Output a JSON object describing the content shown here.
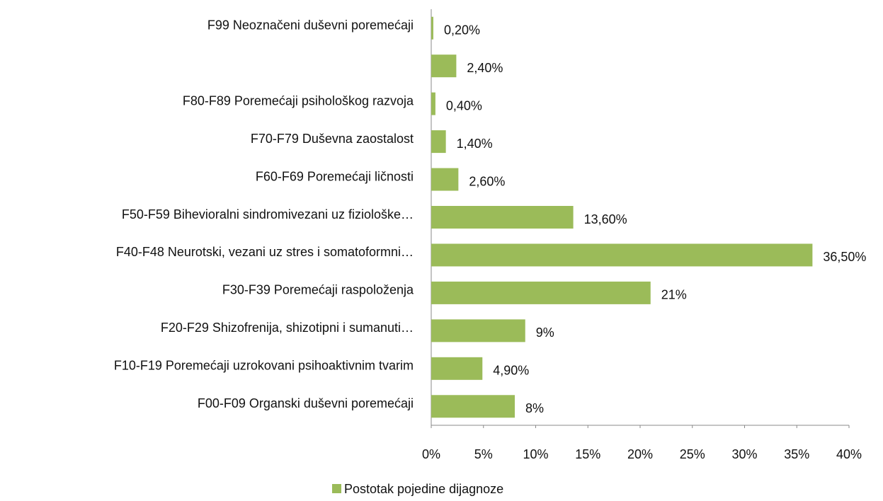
{
  "chart_data": {
    "type": "barh",
    "categories": [
      "F00-F09 Organski duševni poremećaji",
      "F10-F19 Poremećaji uzrokovani psihoaktivnim tvarim",
      "F20-F29 Shizofrenija, shizotipni i sumanuti…",
      "F30-F39 Poremećaji raspoloženja",
      "F40-F48 Neurotski, vezani uz stres i somatoformni…",
      "F50-F59 Bihevioralni sindromivezani uz fiziološke…",
      "F60-F69 Poremećaji ličnosti",
      "F70-F79 Duševna zaostalost",
      "F80-F89 Poremećaji psihološkog razvoja",
      null,
      "F99 Neoznačeni duševni poremećaji"
    ],
    "series": [
      {
        "name": "Postotak pojedine dijagnoze",
        "color": "#9bbb59",
        "values": [
          8,
          4.9,
          9,
          21,
          36.5,
          13.6,
          2.6,
          1.4,
          0.4,
          2.4,
          0.2
        ],
        "value_labels": [
          "8%",
          "4,90%",
          "9%",
          "21%",
          "36,50%",
          "13,60%",
          "2,60%",
          "1,40%",
          "0,40%",
          "2,40%",
          "0,20%"
        ]
      }
    ],
    "xlim": [
      0,
      40
    ],
    "xticks": [
      {
        "value": 0,
        "label": "0%"
      },
      {
        "value": 5,
        "label": "5%"
      },
      {
        "value": 10,
        "label": "10%"
      },
      {
        "value": 15,
        "label": "15%"
      },
      {
        "value": 20,
        "label": "20%"
      },
      {
        "value": 25,
        "label": "25%"
      },
      {
        "value": 30,
        "label": "30%"
      },
      {
        "value": 35,
        "label": "35%"
      },
      {
        "value": 40,
        "label": "40%"
      }
    ],
    "legend": "bottom"
  }
}
